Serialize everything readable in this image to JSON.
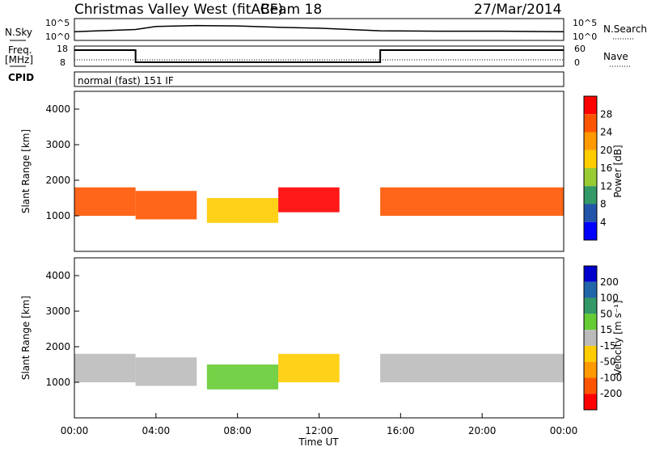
{
  "header": {
    "station": "Christmas Valley West (fitACF)",
    "beam": "Beam 18",
    "date": "27/Mar/2014"
  },
  "noise_panel": {
    "left_label": "N.Sky",
    "right_label": "N.Search",
    "left_ticks": [
      "10^5",
      "10^0"
    ],
    "right_ticks": [
      "10^5",
      "10^0"
    ]
  },
  "freq_panel": {
    "left_label_1": "Freq.",
    "left_label_2": "[MHz]",
    "right_label": "Nave",
    "left_ticks": [
      "18",
      "8"
    ],
    "right_ticks": [
      "60",
      "0"
    ]
  },
  "cpid_panel": {
    "label": "CPID",
    "mode_text": "normal (fast) 151 IF"
  },
  "power_panel": {
    "ylabel": "Slant Range [km]",
    "cbar_label": "Power [dB]",
    "cbar_ticks": [
      "28",
      "24",
      "20",
      "16",
      "12",
      "8",
      "4"
    ],
    "cbar_colors": [
      "#ff0000",
      "#ff5500",
      "#ff9900",
      "#ffcc00",
      "#99cc33",
      "#339966",
      "#2255aa",
      "#0000ff"
    ]
  },
  "velocity_panel": {
    "ylabel": "Slant Range [km]",
    "cbar_label": "Velocity [m s⁻¹]",
    "cbar_ticks": [
      "200",
      "100",
      "50",
      "15",
      "-15",
      "-50",
      "-100",
      "-200"
    ],
    "cbar_colors": [
      "#0000cc",
      "#2266aa",
      "#339966",
      "#66cc33",
      "#bbbbbb",
      "#ffcc00",
      "#ff9900",
      "#ff5500",
      "#ff0000"
    ]
  },
  "x_axis": {
    "label": "Time UT",
    "ticks": [
      "00:00",
      "04:00",
      "08:00",
      "12:00",
      "16:00",
      "20:00",
      "00:00"
    ]
  },
  "chart_data": [
    {
      "type": "line",
      "title": "N.Sky",
      "x": [
        0,
        3,
        4,
        6,
        8,
        10,
        12,
        15,
        18,
        21,
        24
      ],
      "series": [
        {
          "values": [
            2,
            2.5,
            3.2,
            3.4,
            3.3,
            3.0,
            2.8,
            2.2,
            2.1,
            2.1,
            2.0
          ]
        }
      ],
      "yscale": "log",
      "ylim": [
        0,
        5
      ],
      "xlim": [
        0,
        24
      ]
    },
    {
      "type": "line",
      "title": "Freq.",
      "x": [
        0,
        3,
        3.001,
        15,
        15.001,
        24
      ],
      "series": [
        {
          "values": [
            16,
            16,
            10,
            10,
            16,
            16
          ]
        }
      ],
      "ylim": [
        8,
        18
      ],
      "xlim": [
        0,
        24
      ]
    },
    {
      "type": "heatmap",
      "ylabel": "Slant Range [km]",
      "xlabel": "Time UT",
      "xlim": [
        0,
        24
      ],
      "ylim": [
        0,
        4500
      ],
      "yticks": [
        1000,
        2000,
        3000,
        4000
      ],
      "zlabel": "Power [dB]",
      "zlim": [
        0,
        32
      ],
      "bands": [
        {
          "t0": 0,
          "t1": 3,
          "r0": 1000,
          "r1": 1800,
          "z": 26
        },
        {
          "t0": 3,
          "t1": 6,
          "r0": 900,
          "r1": 1700,
          "z": 24
        },
        {
          "t0": 6.5,
          "t1": 10,
          "r0": 800,
          "r1": 1500,
          "z": 18
        },
        {
          "t0": 10,
          "t1": 13,
          "r0": 1100,
          "r1": 1800,
          "z": 28
        },
        {
          "t0": 15,
          "t1": 24,
          "r0": 1000,
          "r1": 1800,
          "z": 24
        }
      ]
    },
    {
      "type": "heatmap",
      "ylabel": "Slant Range [km]",
      "xlabel": "Time UT",
      "xlim": [
        0,
        24
      ],
      "ylim": [
        0,
        4500
      ],
      "yticks": [
        1000,
        2000,
        3000,
        4000
      ],
      "zlabel": "Velocity [m s-1]",
      "zlim": [
        -250,
        250
      ],
      "bands": [
        {
          "t0": 0,
          "t1": 3,
          "r0": 1000,
          "r1": 1800,
          "z": 0
        },
        {
          "t0": 3,
          "t1": 6,
          "r0": 900,
          "r1": 1700,
          "z": 0
        },
        {
          "t0": 6.5,
          "t1": 10,
          "r0": 800,
          "r1": 1500,
          "z": 30
        },
        {
          "t0": 10,
          "t1": 13,
          "r0": 1000,
          "r1": 1800,
          "z": -60
        },
        {
          "t0": 15,
          "t1": 24,
          "r0": 1000,
          "r1": 1800,
          "z": 0
        }
      ]
    }
  ]
}
